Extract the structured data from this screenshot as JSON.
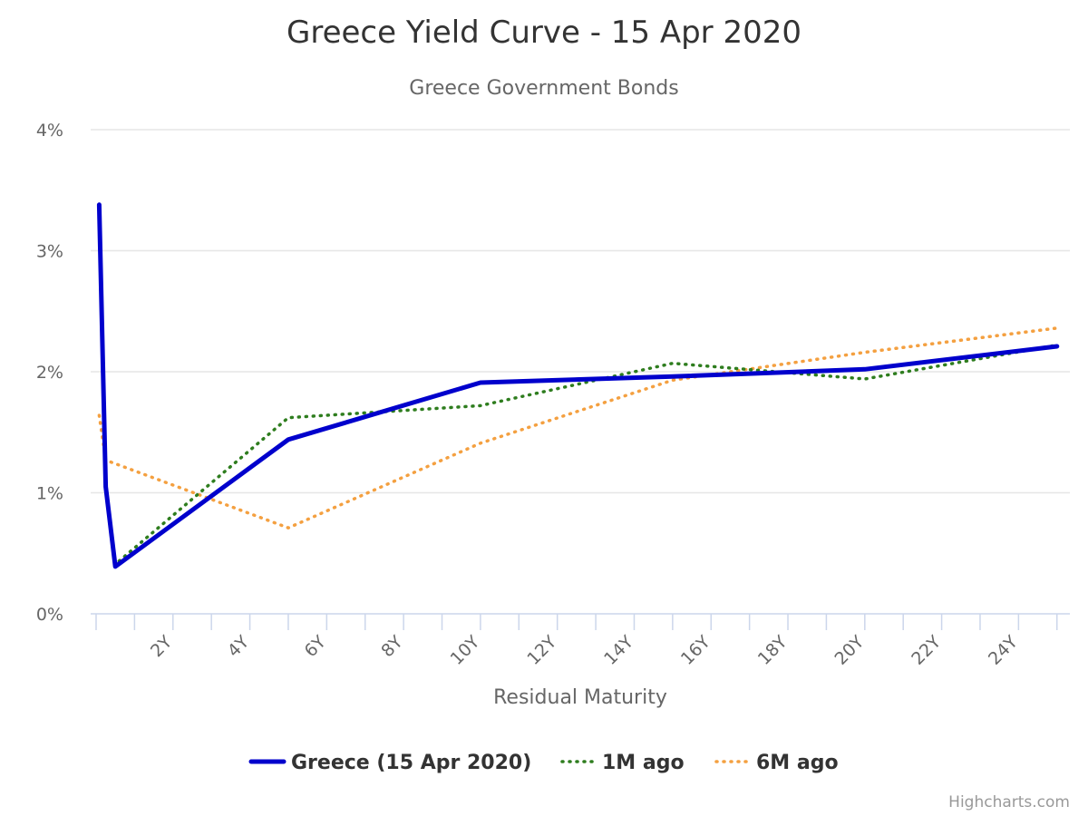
{
  "chart_data": {
    "type": "line",
    "title": "Greece Yield Curve - 15 Apr 2020",
    "subtitle": "Greece Government Bonds",
    "xlabel": "Residual Maturity",
    "ylabel": "",
    "xlim": [
      0,
      25.1
    ],
    "ylim": [
      0,
      4
    ],
    "x_ticks": [
      0,
      1,
      2,
      3,
      4,
      5,
      6,
      7,
      8,
      9,
      10,
      11,
      12,
      13,
      14,
      15,
      16,
      17,
      18,
      19,
      20,
      21,
      22,
      23,
      24,
      25
    ],
    "x_tick_labels": [
      "2Y",
      "4Y",
      "6Y",
      "8Y",
      "10Y",
      "12Y",
      "14Y",
      "16Y",
      "18Y",
      "20Y",
      "22Y",
      "24Y"
    ],
    "x_tick_label_values": [
      2,
      4,
      6,
      8,
      10,
      12,
      14,
      16,
      18,
      20,
      22,
      24
    ],
    "y_ticks": [
      0,
      1,
      2,
      3,
      4
    ],
    "y_tick_labels": [
      "0%",
      "1%",
      "2%",
      "3%",
      "4%"
    ],
    "grid": true,
    "legend_position": "bottom",
    "series": [
      {
        "name": "Greece (15 Apr 2020)",
        "color": "#0000cc",
        "style": "solid",
        "x": [
          0.08,
          0.25,
          0.5,
          5,
          10,
          15,
          20,
          25
        ],
        "y": [
          3.38,
          1.05,
          0.39,
          1.44,
          1.91,
          1.96,
          2.02,
          2.21
        ]
      },
      {
        "name": "1M ago",
        "color": "#2e7d1e",
        "style": "dotted",
        "x": [
          0.08,
          0.25,
          0.5,
          5,
          10,
          15,
          20,
          25
        ],
        "y": [
          3.36,
          1.07,
          0.41,
          1.62,
          1.72,
          2.07,
          1.94,
          2.22
        ]
      },
      {
        "name": "6M ago",
        "color": "#f4a040",
        "style": "dotted",
        "x": [
          0.08,
          0.25,
          5,
          10,
          15,
          20,
          25
        ],
        "y": [
          1.64,
          1.27,
          0.71,
          1.41,
          1.93,
          2.16,
          2.36
        ]
      }
    ],
    "credit": "Highcharts.com"
  }
}
